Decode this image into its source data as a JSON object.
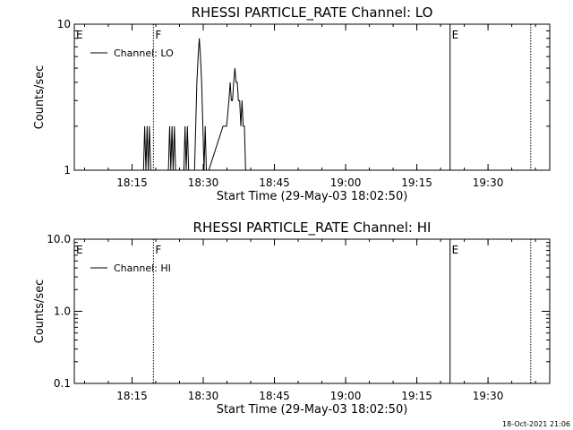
{
  "chart_data": [
    {
      "type": "line",
      "title": "RHESSI PARTICLE_RATE Channel: LO",
      "xlabel": "Start Time (29-May-03 18:02:50)",
      "ylabel": "Counts/sec",
      "yscale": "log",
      "ylim": [
        1,
        10
      ],
      "y_ticks": [
        {
          "v": 1,
          "label": "1"
        },
        {
          "v": 10,
          "label": "10"
        }
      ],
      "xlim": [
        "18:02:50",
        "19:43:00"
      ],
      "x_ticks": [
        "18:15",
        "18:30",
        "18:45",
        "19:00",
        "19:15",
        "19:30"
      ],
      "legend": {
        "placement": "top-left",
        "entries": [
          "Channel: LO"
        ]
      },
      "markers": [
        {
          "time": "18:02:50",
          "label": "E",
          "style": "solid"
        },
        {
          "time": "18:19:30",
          "label": "F",
          "style": "dotted"
        },
        {
          "time": "19:22:00",
          "label": "E",
          "style": "solid"
        },
        {
          "time": "19:39:00",
          "label": "",
          "style": "dotted"
        }
      ],
      "series": [
        {
          "name": "Channel: LO",
          "x": [
            "18:17:25",
            "18:17:40",
            "18:17:55",
            "18:18:10",
            "18:18:25",
            "18:18:40",
            "18:18:55",
            "18:19:10",
            "18:22:40",
            "18:22:55",
            "18:23:10",
            "18:23:25",
            "18:23:40",
            "18:23:55",
            "18:24:10",
            "18:24:25",
            "18:25:55",
            "18:26:10",
            "18:26:25",
            "18:26:40",
            "18:26:55",
            "18:27:10",
            "18:28:10",
            "18:28:25",
            "18:28:40",
            "18:28:55",
            "18:29:10",
            "18:29:25",
            "18:29:40",
            "18:29:55",
            "18:30:10",
            "18:30:25",
            "18:30:40",
            "18:30:55",
            "18:31:10",
            "18:34:10",
            "18:34:25",
            "18:34:55",
            "18:35:25",
            "18:35:40",
            "18:35:55",
            "18:36:10",
            "18:36:25",
            "18:36:40",
            "18:36:55",
            "18:37:10",
            "18:37:25",
            "18:37:40",
            "18:37:55",
            "18:38:10",
            "18:38:25",
            "18:38:40",
            "18:38:55",
            "18:39:10",
            "18:39:25",
            "18:39:40",
            "18:39:55",
            "18:40:10"
          ],
          "y": [
            1,
            2,
            1,
            2,
            1,
            2,
            1,
            1,
            1,
            2,
            1,
            2,
            1,
            2,
            1,
            1,
            1,
            2,
            1,
            2,
            1,
            1,
            1,
            2,
            4,
            6,
            8,
            6,
            4,
            2,
            1,
            2,
            1,
            1,
            1,
            2,
            2,
            2,
            3,
            4,
            3,
            3,
            4,
            5,
            4,
            4,
            3,
            3,
            2,
            3,
            2,
            2,
            1,
            1,
            1,
            1,
            1,
            1
          ]
        }
      ]
    },
    {
      "type": "line",
      "title": "RHESSI PARTICLE_RATE Channel: HI",
      "xlabel": "Start Time (29-May-03 18:02:50)",
      "ylabel": "Counts/sec",
      "yscale": "log",
      "ylim": [
        0.1,
        10
      ],
      "y_ticks": [
        {
          "v": 0.1,
          "label": "0.1"
        },
        {
          "v": 1,
          "label": "1.0"
        },
        {
          "v": 10,
          "label": "10.0"
        }
      ],
      "xlim": [
        "18:02:50",
        "19:43:00"
      ],
      "x_ticks": [
        "18:15",
        "18:30",
        "18:45",
        "19:00",
        "19:15",
        "19:30"
      ],
      "legend": {
        "placement": "top-left",
        "entries": [
          "Channel: HI"
        ]
      },
      "markers": [
        {
          "time": "18:02:50",
          "label": "E",
          "style": "solid"
        },
        {
          "time": "18:19:30",
          "label": "F",
          "style": "dotted"
        },
        {
          "time": "19:22:00",
          "label": "E",
          "style": "solid"
        },
        {
          "time": "19:39:00",
          "label": "",
          "style": "dotted"
        }
      ],
      "series": [
        {
          "name": "Channel: HI",
          "x": [],
          "y": []
        }
      ]
    }
  ],
  "timestamp": "18-Oct-2021 21:06"
}
